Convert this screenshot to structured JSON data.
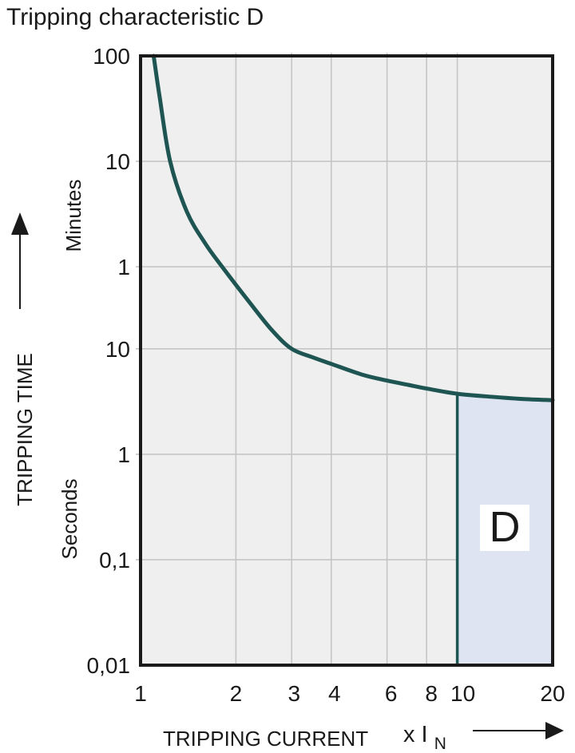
{
  "title": "Tripping characteristic D",
  "icons": {
    "y_axis_arrow": "up-arrow",
    "x_axis_arrow": "right-arrow"
  },
  "chart_data": {
    "type": "line",
    "title": "Tripping characteristic D",
    "grid": true,
    "x_axis": {
      "label": "TRIPPING CURRENT",
      "unit": {
        "prefix": "x I",
        "subscript": "N"
      },
      "scale": "log",
      "min": 1,
      "max": 20,
      "ticks": [
        {
          "value": 1,
          "label": "1"
        },
        {
          "value": 2,
          "label": "2"
        },
        {
          "value": 3,
          "label": "3"
        },
        {
          "value": 4,
          "label": "4"
        },
        {
          "value": 6,
          "label": "6"
        },
        {
          "value": 8,
          "label": "8"
        },
        {
          "value": 10,
          "label": "10"
        },
        {
          "value": 20,
          "label": "20"
        }
      ]
    },
    "y_axis": {
      "label": "TRIPPING TIME",
      "scale": "log",
      "min_seconds": 0.01,
      "max_seconds": 6000,
      "units": [
        {
          "name": "Minutes",
          "span": "upper"
        },
        {
          "name": "Seconds",
          "span": "lower"
        }
      ],
      "ticks": [
        {
          "seconds": 6000,
          "label": "100"
        },
        {
          "seconds": 600,
          "label": "10"
        },
        {
          "seconds": 60,
          "label": "1"
        },
        {
          "seconds": 10,
          "label": "10"
        },
        {
          "seconds": 1,
          "label": "1"
        },
        {
          "seconds": 0.1,
          "label": "0,1"
        },
        {
          "seconds": 0.01,
          "label": "0,01"
        }
      ]
    },
    "series": [
      {
        "name": "tripping-curve",
        "color": "#1e5552",
        "points_x_in_t_seconds": [
          [
            1.1,
            6000
          ],
          [
            1.15,
            2400
          ],
          [
            1.24,
            600
          ],
          [
            1.4,
            200
          ],
          [
            1.6,
            100
          ],
          [
            1.81,
            60
          ],
          [
            2.2,
            28
          ],
          [
            2.6,
            15
          ],
          [
            3.0,
            10
          ],
          [
            3.5,
            8.3
          ],
          [
            4.0,
            7.2
          ],
          [
            5.0,
            5.7
          ],
          [
            6.0,
            5.0
          ],
          [
            7.0,
            4.55
          ],
          [
            8.0,
            4.2
          ],
          [
            10.0,
            3.75
          ],
          [
            13.0,
            3.5
          ],
          [
            16.0,
            3.35
          ],
          [
            20.0,
            3.26
          ]
        ]
      }
    ],
    "region": {
      "label": "D",
      "x_from": 10,
      "x_to": 20,
      "top": "curve",
      "bottom_seconds": 0.01,
      "fill": "#dee4f2",
      "border_color": "#1e5552",
      "label_box_fill": "#ffffff"
    },
    "colors": {
      "plot_background": "#efefef",
      "grid_line": "#c5c5c5",
      "axis_border": "#1a1a1a",
      "text": "#1a1a1a"
    }
  }
}
